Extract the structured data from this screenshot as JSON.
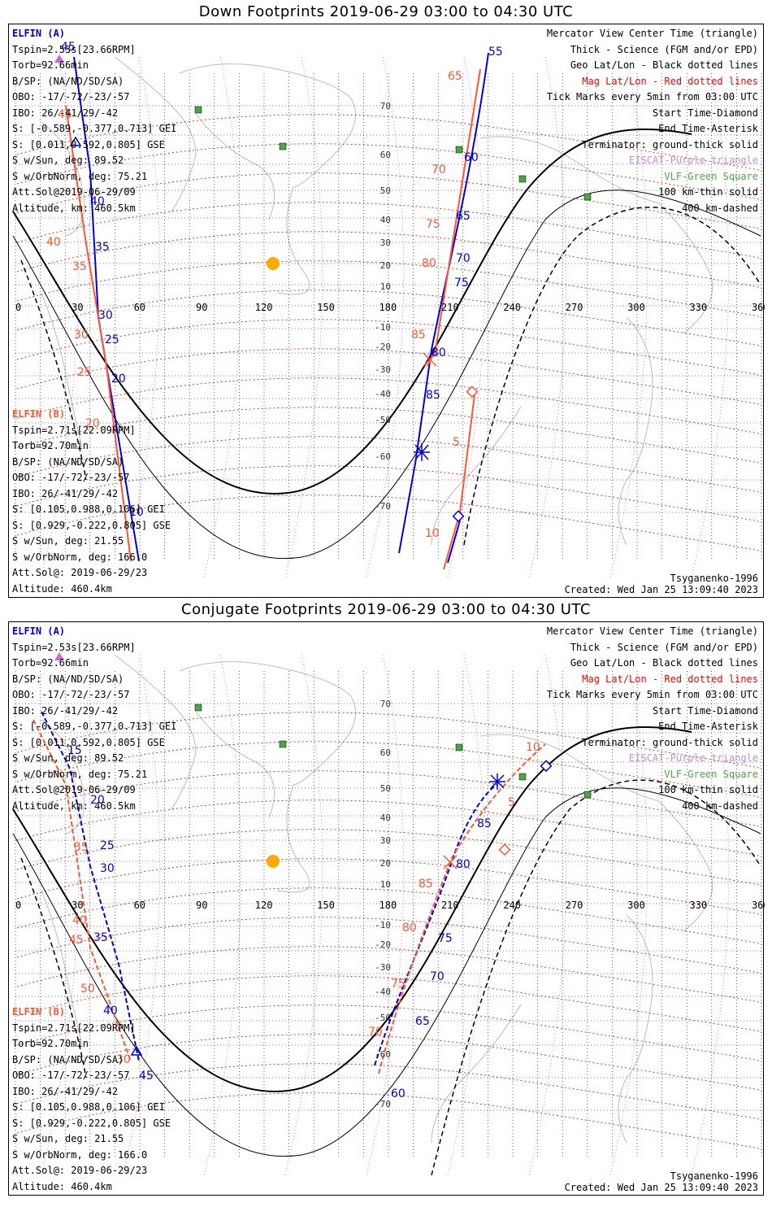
{
  "panels": [
    {
      "title": "Down Footprints 2019-06-29 03:00 to 04:30 UTC",
      "elfin_a": {
        "header": "ELFIN (A)",
        "lines": [
          "Tspin=2.53s[23.66RPM]",
          "Torb=92.66min",
          "B/SP: (NA/ND/SD/SA)",
          "OBO: -17/-72/-23/-57",
          "IBO: 26/-41/29/-42",
          "S: [-0.589,-0.377,0.713] GEI",
          "S: [0.011,0.592,0.805] GSE",
          "S w/Sun, deg: 89.52",
          "S w/OrbNorm, deg: 75.21",
          "Att.Sol@2019-06-29/09",
          "Altitude, km: 460.5km"
        ]
      },
      "elfin_b": {
        "header": "ELFIN (B)",
        "lines": [
          "Tspin=2.71s[22.09RPM]",
          "Torb=92.70min",
          "B/SP: (NA/ND/SD/SA)",
          "OBO: -17/-72/-23/-57",
          "IBO: 26/-41/29/-42",
          "S: [0.105,0.988,0.106] GEI",
          "S: [0.929,-0.222,0.805] GSE",
          "S w/Sun, deg: 21.55",
          "S w/OrbNorm, deg: 166.0",
          "Att.Sol@: 2019-06-29/23",
          "Altitude: 460.4km"
        ]
      },
      "legend": [
        {
          "text": "Mercator View Center Time (triangle)",
          "color": "#000000"
        },
        {
          "text": "Thick - Science (FGM and/or EPD)",
          "color": "#000000"
        },
        {
          "text": "Geo Lat/Lon - Black dotted lines",
          "color": "#000000"
        },
        {
          "text": "Mag Lat/Lon - Red dotted lines",
          "color": "#ff0000"
        },
        {
          "text": "Tick Marks every 5min from 03:00 UTC",
          "color": "#000000"
        },
        {
          "text": "Start Time-Diamond",
          "color": "#000000"
        },
        {
          "text": "End Time-Asterisk",
          "color": "#000000"
        },
        {
          "text": "Terminator: ground-thick solid",
          "color": "#000000"
        },
        {
          "text": "EISCAT-Purple triangle",
          "color": "#cc88dd"
        },
        {
          "text": "VLF-Green Square",
          "color": "#44aa44"
        },
        {
          "text": "100 km-thin solid",
          "color": "#000000"
        },
        {
          "text": "400 km-dashed",
          "color": "#000000"
        }
      ],
      "footer_model": "Tsyganenko-1996",
      "footer_created": "Created: Wed Jan 25 13:09:40 2023",
      "lon_ticks": [
        "0",
        "30",
        "60",
        "90",
        "120",
        "150",
        "180",
        "210",
        "240",
        "270",
        "300",
        "330",
        "360"
      ],
      "lat_ticks": [
        "70",
        "60",
        "50",
        "40",
        "30",
        "20",
        "10",
        "-10",
        "-20",
        "-30",
        "-40",
        "-50",
        "-60",
        "-70"
      ],
      "labels_a": [
        "55",
        "60",
        "65",
        "70",
        "75",
        "80",
        "85",
        "45",
        "40",
        "35",
        "30",
        "25",
        "20",
        "10"
      ],
      "labels_b": [
        "65",
        "70",
        "75",
        "80",
        "85",
        "5",
        "10",
        "45",
        "40",
        "35",
        "30",
        "25",
        "20"
      ]
    },
    {
      "title": "Conjugate Footprints 2019-06-29 03:00 to 04:30 UTC",
      "elfin_a": {
        "header": "ELFIN (A)",
        "lines": [
          "Tspin=2.53s[23.66RPM]",
          "Torb=92.66min",
          "B/SP: (NA/ND/SD/SA)",
          "OBO: -17/-72/-23/-57",
          "IBO: 26/-41/29/-42",
          "S: [-0.589,-0.377,0.713] GEI",
          "S: [0.011,0.592,0.805] GSE",
          "S w/Sun, deg: 89.52",
          "S w/OrbNorm, deg: 75.21",
          "Att.Sol@2019-06-29/09",
          "Altitude, km: 460.5km"
        ]
      },
      "elfin_b": {
        "header": "ELFIN (B)",
        "lines": [
          "Tspin=2.71s[22.09RPM]",
          "Torb=92.70min",
          "B/SP: (NA/ND/SD/SA)",
          "OBO: -17/-72/-23/-57",
          "IBO: 26/-41/29/-42",
          "S: [0.105,0.988,0.106] GEI",
          "S: [0.929,-0.222,0.805] GSE",
          "S w/Sun, deg: 21.55",
          "S w/OrbNorm, deg: 166.0",
          "Att.Sol@: 2019-06-29/23",
          "Altitude: 460.4km"
        ]
      },
      "legend": [
        {
          "text": "Mercator View Center Time (triangle)",
          "color": "#000000"
        },
        {
          "text": "Thick - Science (FGM and/or EPD)",
          "color": "#000000"
        },
        {
          "text": "Geo Lat/Lon - Black dotted lines",
          "color": "#000000"
        },
        {
          "text": "Mag Lat/Lon - Red dotted lines",
          "color": "#ff0000"
        },
        {
          "text": "Tick Marks every 5min from 03:00 UTC",
          "color": "#000000"
        },
        {
          "text": "Start Time-Diamond",
          "color": "#000000"
        },
        {
          "text": "End Time-Asterisk",
          "color": "#000000"
        },
        {
          "text": "Terminator: ground-thick solid",
          "color": "#000000"
        },
        {
          "text": "EISCAT-Purple triangle",
          "color": "#cc88dd"
        },
        {
          "text": "VLF-Green Square",
          "color": "#44aa44"
        },
        {
          "text": "100 km-thin solid",
          "color": "#000000"
        },
        {
          "text": "400 km-dashed",
          "color": "#000000"
        }
      ],
      "footer_model": "Tsyganenko-1996",
      "footer_created": "Created: Wed Jan 25 13:09:40 2023",
      "lon_ticks": [
        "0",
        "30",
        "60",
        "90",
        "120",
        "150",
        "180",
        "210",
        "240",
        "270",
        "300",
        "330",
        "360"
      ],
      "lat_ticks": [
        "70",
        "60",
        "50",
        "40",
        "30",
        "20",
        "10",
        "-10",
        "-20",
        "-30",
        "-40",
        "-50",
        "-60",
        "-70"
      ],
      "labels_a": [
        "15",
        "20",
        "25",
        "30",
        "35",
        "40",
        "45",
        "60",
        "65",
        "70",
        "75",
        "80",
        "85"
      ],
      "labels_b": [
        "10",
        "5",
        "85",
        "80",
        "75",
        "70",
        "50",
        "45",
        "40",
        "35",
        "30",
        "55"
      ]
    }
  ],
  "colors": {
    "elfin_a": "#0000dd",
    "elfin_b": "#ff5533",
    "mag_grid": "#ee0000",
    "geo_grid": "#000000",
    "eiscat": "#cc66dd",
    "vlf": "#44aa44",
    "sun": "#ffaa00",
    "coast": "#bbbbbb"
  }
}
